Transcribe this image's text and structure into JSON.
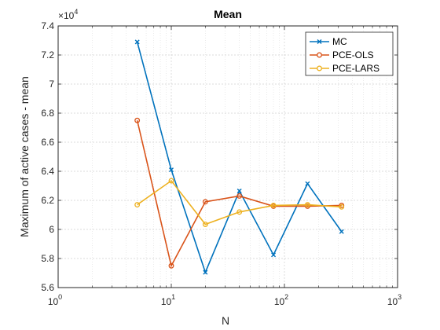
{
  "chart_data": {
    "type": "line",
    "title": "Mean",
    "xlabel": "N",
    "ylabel": "Maximum of active cases - mean",
    "x_scale": "log",
    "xlim": [
      1,
      1000
    ],
    "ylim": [
      56000,
      74000
    ],
    "y_multiplier_label": "×10",
    "y_multiplier_exp": "4",
    "x_ticks": [
      {
        "value": 1,
        "base": "10",
        "exp": "0"
      },
      {
        "value": 10,
        "base": "10",
        "exp": "1"
      },
      {
        "value": 100,
        "base": "10",
        "exp": "2"
      },
      {
        "value": 1000,
        "base": "10",
        "exp": "3"
      }
    ],
    "y_ticks": [
      {
        "value": 56000,
        "label": "5.6"
      },
      {
        "value": 58000,
        "label": "5.8"
      },
      {
        "value": 60000,
        "label": "6"
      },
      {
        "value": 62000,
        "label": "6.2"
      },
      {
        "value": 64000,
        "label": "6.4"
      },
      {
        "value": 66000,
        "label": "6.6"
      },
      {
        "value": 68000,
        "label": "6.8"
      },
      {
        "value": 70000,
        "label": "7"
      },
      {
        "value": 72000,
        "label": "7.2"
      },
      {
        "value": 74000,
        "label": "7.4"
      }
    ],
    "grid": true,
    "legend_position": "top-right",
    "x": [
      5,
      10,
      20,
      40,
      80,
      160,
      320
    ],
    "series": [
      {
        "name": "MC",
        "color": "#0072BD",
        "marker": "x",
        "values": [
          72900,
          64100,
          57050,
          62650,
          58250,
          63150,
          59850
        ]
      },
      {
        "name": "PCE-OLS",
        "color": "#D95319",
        "marker": "circle",
        "values": [
          67500,
          57500,
          61900,
          62300,
          61600,
          61600,
          61650
        ]
      },
      {
        "name": "PCE-LARS",
        "color": "#EDB120",
        "marker": "circle",
        "values": [
          61700,
          63350,
          60350,
          61200,
          61650,
          61700,
          61550
        ]
      }
    ]
  }
}
